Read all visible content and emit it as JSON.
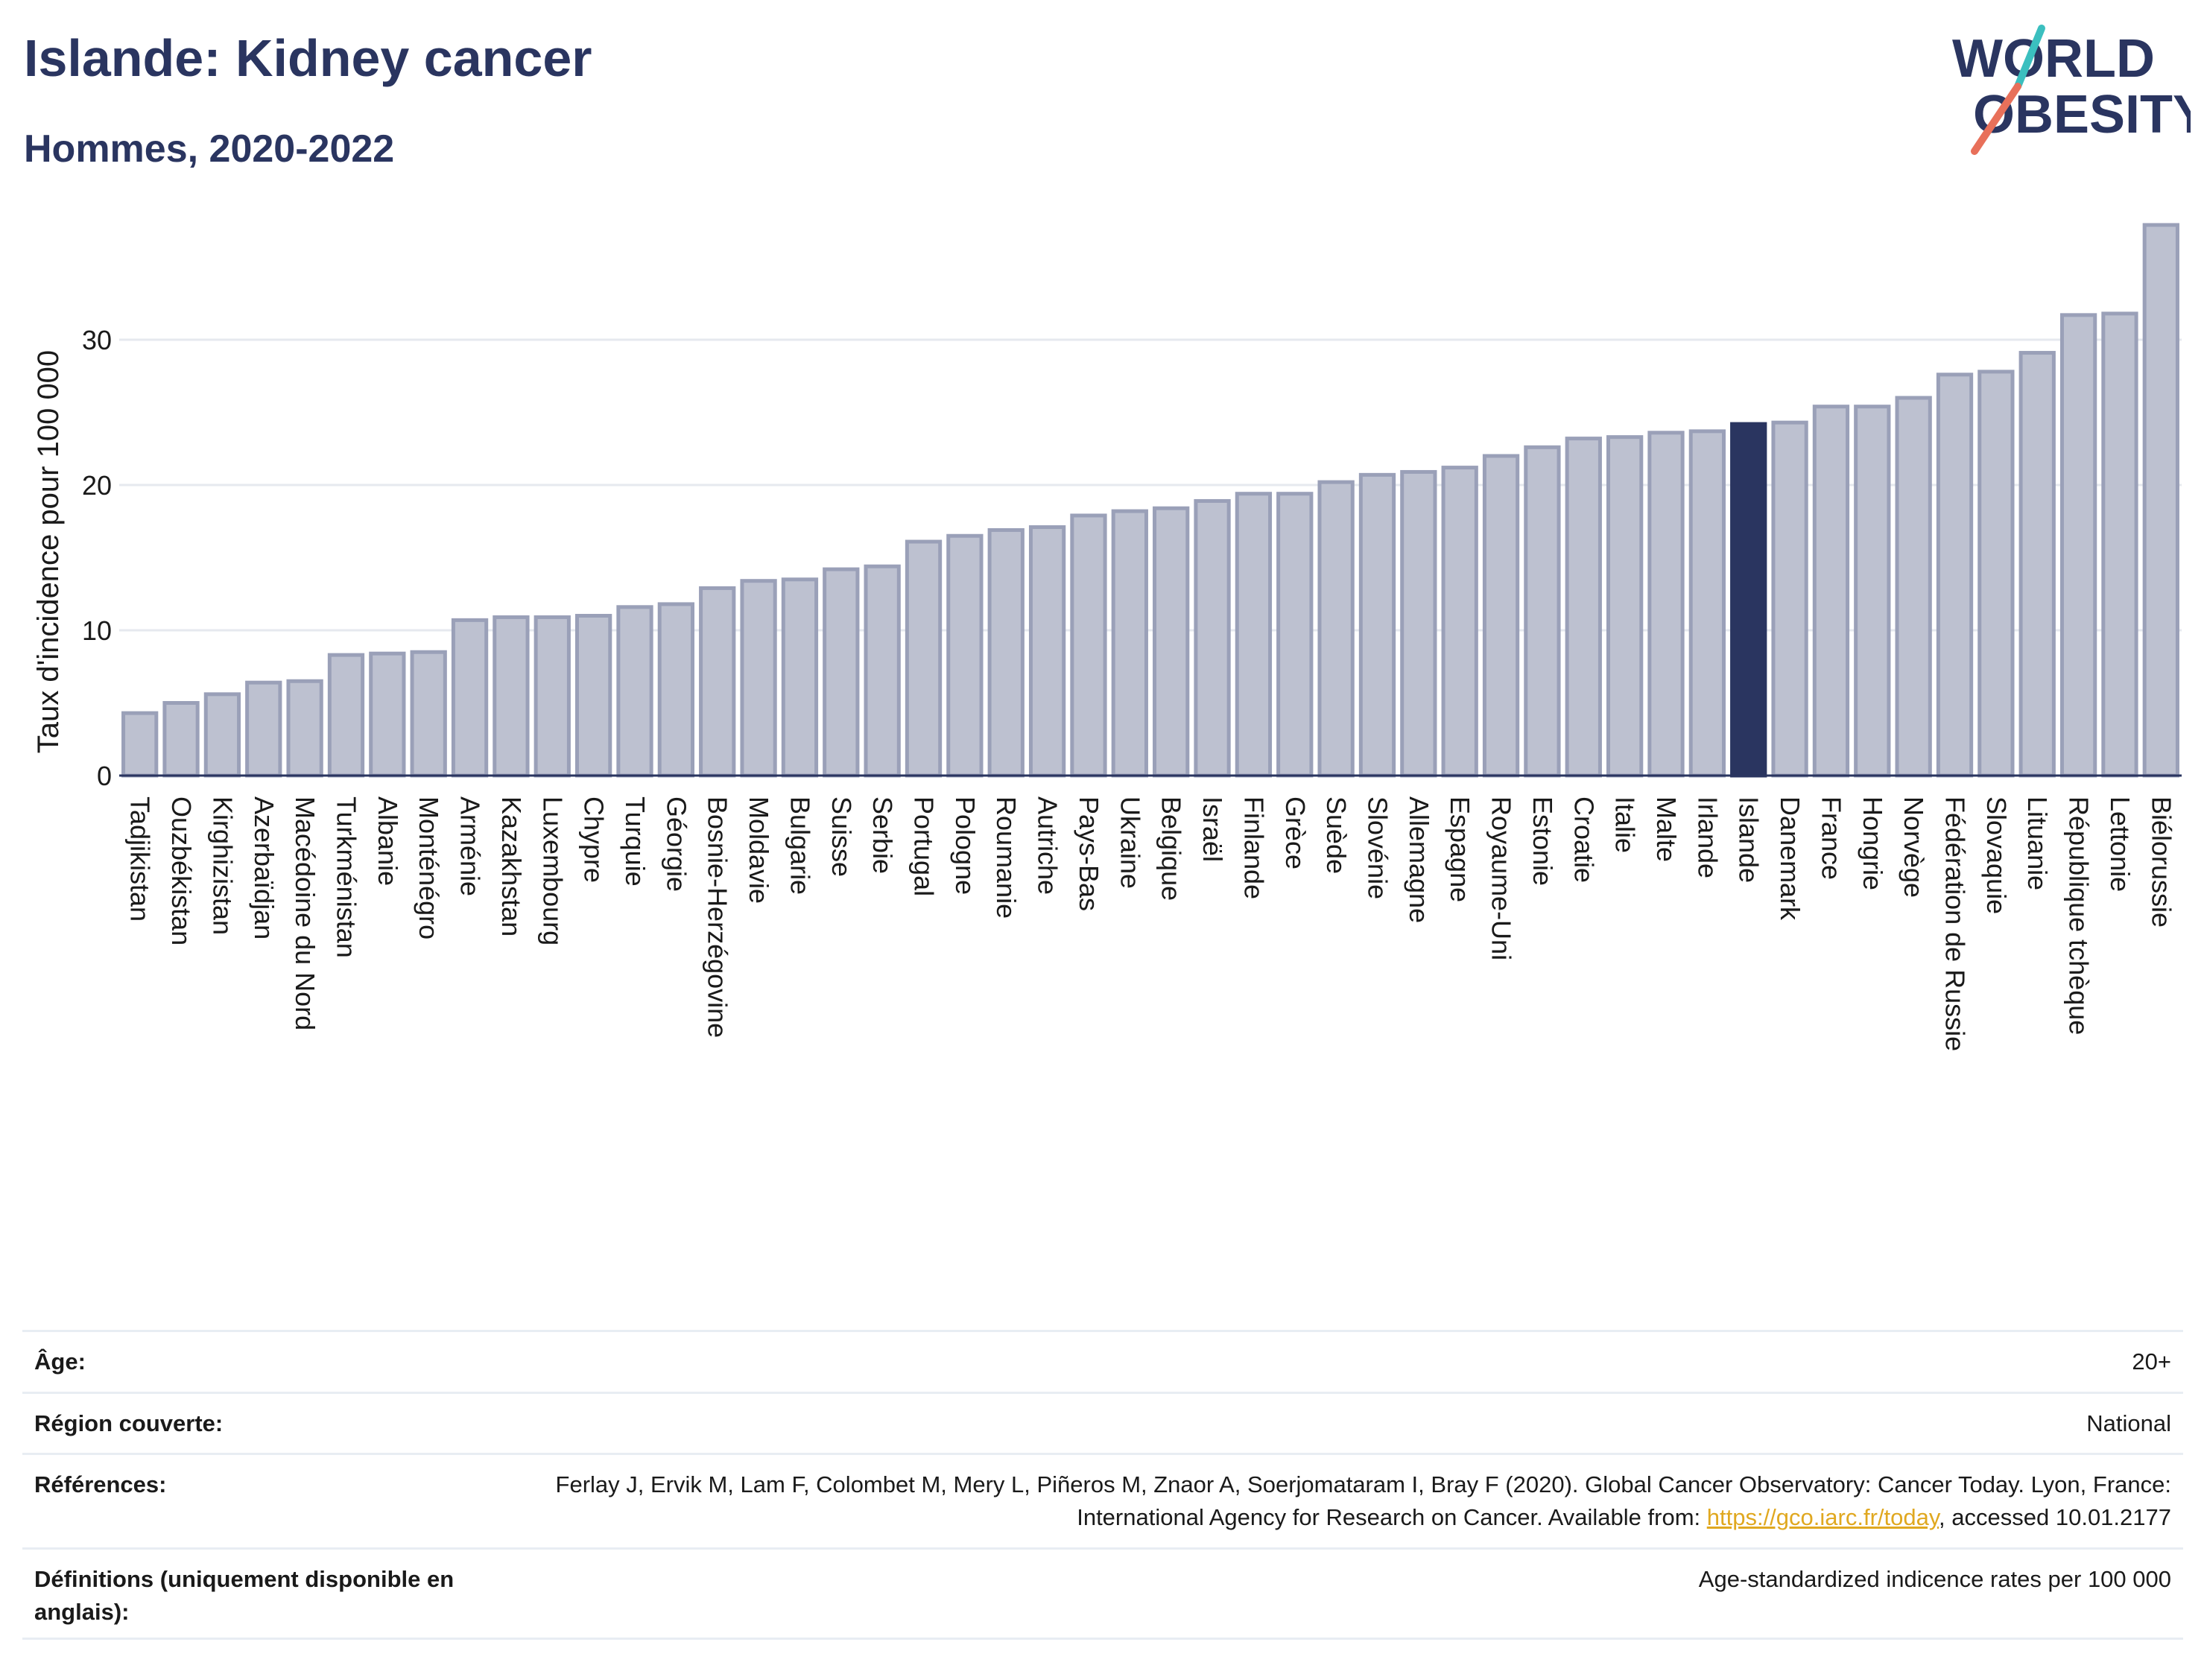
{
  "header": {
    "title": "Islande: Kidney cancer",
    "subtitle": "Hommes, 2020-2022"
  },
  "logo": {
    "line1": "WORLD",
    "line2": "OBESITY"
  },
  "colors": {
    "bar": "#bdc1d0",
    "bar_stroke": "#9aa0b8",
    "highlight": "#2a3560",
    "grid": "#e6e9ef",
    "title": "#2a3560"
  },
  "chart_data": {
    "type": "bar",
    "ylabel": "Taux d'incidence pour 100 000",
    "xlabel": "",
    "ylim": [
      0,
      38
    ],
    "yticks": [
      0,
      10,
      20,
      30
    ],
    "grid": true,
    "highlight": "Islande",
    "categories": [
      "Tadjikistan",
      "Ouzbékistan",
      "Kirghizistan",
      "Azerbaïdjan",
      "Macédoine du Nord",
      "Turkménistan",
      "Albanie",
      "Monténégro",
      "Arménie",
      "Kazakhstan",
      "Luxembourg",
      "Chypre",
      "Turquie",
      "Géorgie",
      "Bosnie-Herzégovine",
      "Moldavie",
      "Bulgarie",
      "Suisse",
      "Serbie",
      "Portugal",
      "Pologne",
      "Roumanie",
      "Autriche",
      "Pays-Bas",
      "Ukraine",
      "Belgique",
      "Israël",
      "Finlande",
      "Grèce",
      "Suède",
      "Slovénie",
      "Allemagne",
      "Espagne",
      "Royaume-Uni",
      "Estonie",
      "Croatie",
      "Italie",
      "Malte",
      "Irlande",
      "Islande",
      "Danemark",
      "France",
      "Hongrie",
      "Norvège",
      "Fédération de Russie",
      "Slovaquie",
      "Lituanie",
      "République tchèque",
      "Lettonie",
      "Biélorussie"
    ],
    "values": [
      4.3,
      5.0,
      5.6,
      6.4,
      6.5,
      8.3,
      8.4,
      8.5,
      10.7,
      10.9,
      10.9,
      11.0,
      11.6,
      11.8,
      12.9,
      13.4,
      13.5,
      14.2,
      14.4,
      16.1,
      16.5,
      16.9,
      17.1,
      17.9,
      18.2,
      18.4,
      18.9,
      19.4,
      19.4,
      20.2,
      20.7,
      20.9,
      21.2,
      22.0,
      22.6,
      23.2,
      23.3,
      23.6,
      23.7,
      24.2,
      24.3,
      25.4,
      25.4,
      26.0,
      27.6,
      27.8,
      29.1,
      31.7,
      31.8,
      37.9
    ]
  },
  "meta": [
    {
      "key": "Âge:",
      "value": "20+"
    },
    {
      "key": "Région couverte:",
      "value": "National"
    },
    {
      "key": "Références:",
      "value_pre": "Ferlay J, Ervik M, Lam F, Colombet M, Mery L, Piñeros M, Znaor A, Soerjomataram I, Bray F (2020). Global Cancer Observatory: Cancer Today. Lyon, France: International Agency for Research on Cancer. Available from: ",
      "link": "https://gco.iarc.fr/today",
      "value_post": ", accessed 10.01.2177"
    },
    {
      "key": "Définitions (uniquement disponible en anglais):",
      "value": "Age-standardized indicence rates per 100 000"
    }
  ]
}
